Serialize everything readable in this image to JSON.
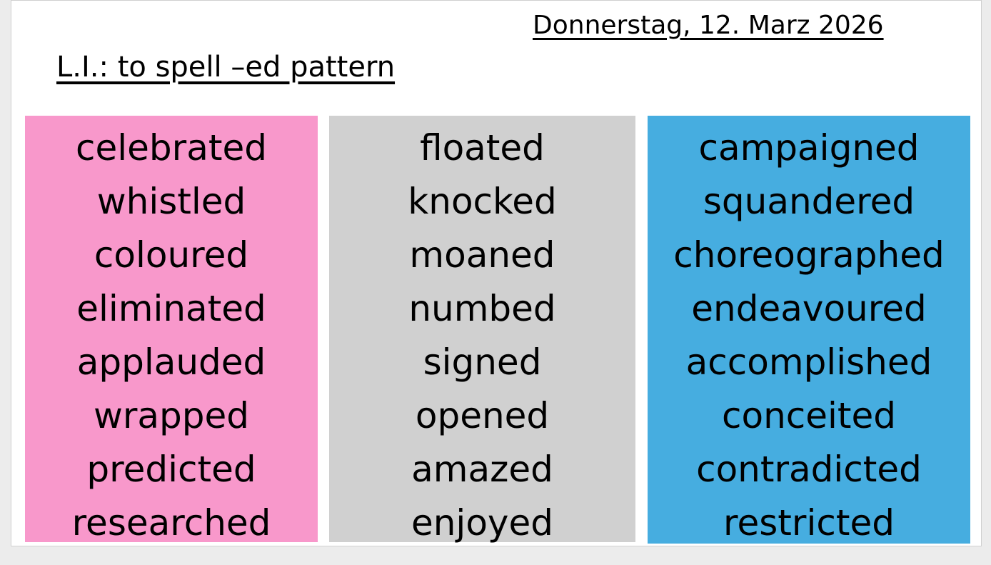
{
  "date": "Donnerstag, 12. Marz 2026",
  "title": "L.I.: to spell –ed pattern",
  "columns": [
    {
      "words": [
        "celebrated",
        "whistled",
        "coloured",
        "eliminated",
        "applauded",
        "wrapped",
        "predicted",
        "researched"
      ]
    },
    {
      "words": [
        "floated",
        "knocked",
        "moaned",
        "numbed",
        "signed",
        "opened",
        "amazed",
        "enjoyed"
      ]
    },
    {
      "words": [
        "campaigned",
        "squandered",
        "choreographed",
        "endeavoured",
        "accomplished",
        "conceited",
        "contradicted",
        "restricted"
      ]
    }
  ]
}
